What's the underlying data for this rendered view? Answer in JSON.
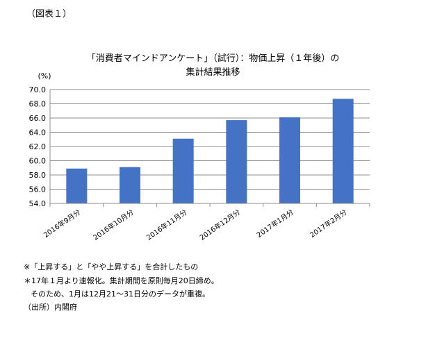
{
  "figure_label": "（図表１）",
  "chart_data": {
    "type": "bar",
    "title_line1": "「消費者マインドアンケート」（試行）：物価上昇（１年後）の",
    "title_line2": "集計結果推移",
    "ylabel": "(%)",
    "xlabel": "",
    "categories": [
      "2016年9月分",
      "2016年10月分",
      "2016年11月分",
      "2016年12月分",
      "2017年1月分",
      "2017年2月分"
    ],
    "values": [
      58.9,
      59.1,
      63.1,
      65.7,
      66.1,
      68.7
    ],
    "ylim": [
      54.0,
      70.0
    ],
    "yticks": [
      "54.0",
      "56.0",
      "58.0",
      "60.0",
      "62.0",
      "64.0",
      "66.0",
      "68.0",
      "70.0"
    ],
    "grid": true,
    "legend": "none",
    "bar_color": "#4472c4"
  },
  "notes": [
    "※「上昇する」と「やや上昇する」を合計したもの",
    "＊17年１月より速報化。集計期間を原則毎月20日締め。",
    "そのため、1月は12月21～31日分のデータが重複。",
    "（出所）内閣府"
  ]
}
